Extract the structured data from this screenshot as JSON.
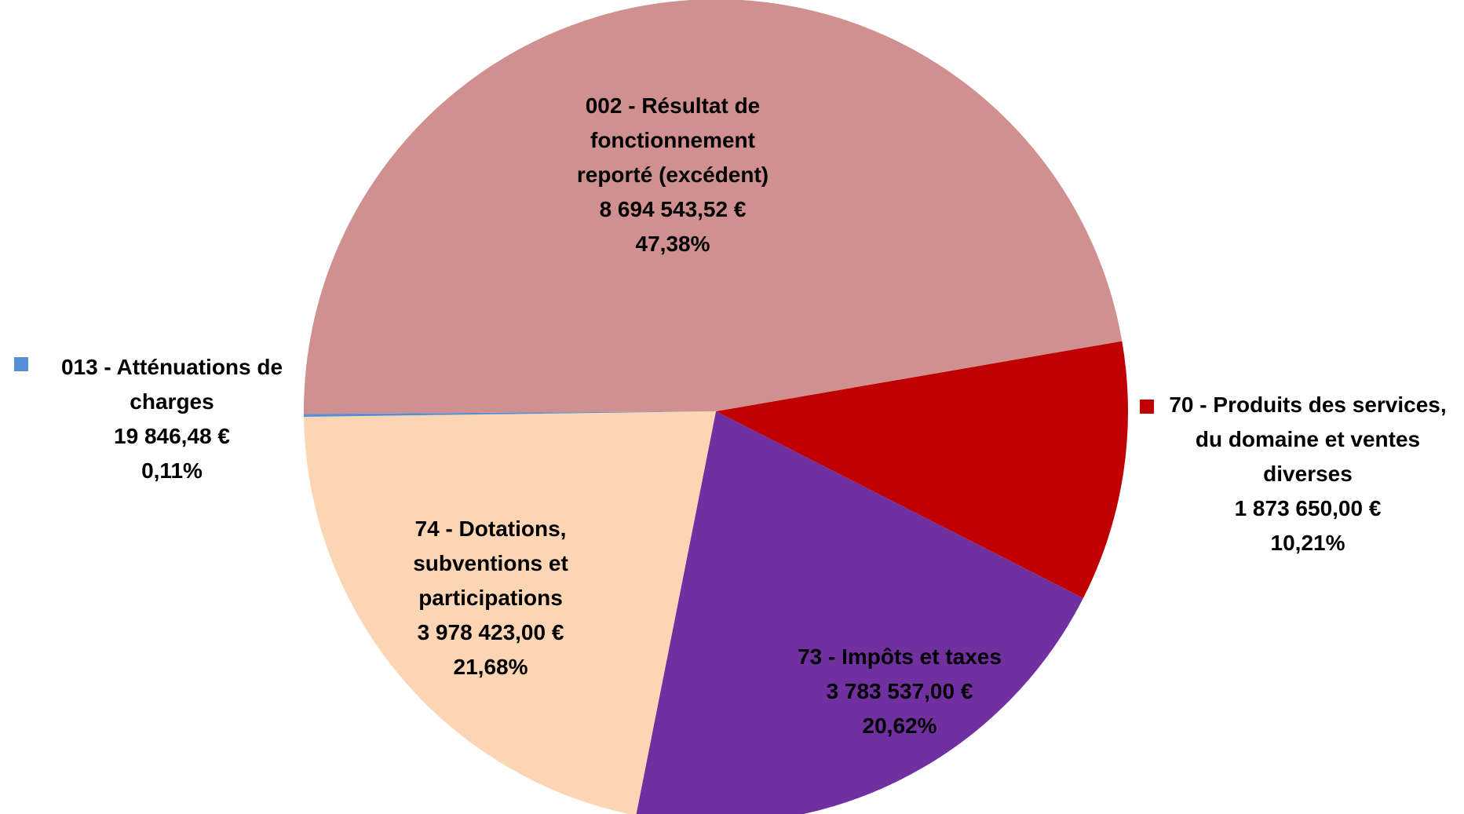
{
  "chart_data": {
    "type": "pie",
    "categories": [
      "70 - Produits des services, du domaine et ventes diverses",
      "73 - Impôts et taxes",
      "74 - Dotations, subventions et participations",
      "013 - Atténuations de charges",
      "002 - Résultat de fonctionnement reporté (excédent)"
    ],
    "values": [
      1873650.0,
      3783537.0,
      3978423.0,
      19846.48,
      8694543.52
    ],
    "value_labels": [
      "1 873 650,00 €",
      "3 783 537,00 €",
      "3 978 423,00 €",
      "19 846,48 €",
      "8 694 543,52 €"
    ],
    "percentages": [
      10.21,
      20.62,
      21.68,
      0.11,
      47.38
    ],
    "percentage_labels": [
      "10,21%",
      "20,62%",
      "21,68%",
      "0,11%",
      "47,38%"
    ],
    "colors": [
      "#c00000",
      "#7030a0",
      "#fcd5b5",
      "#558ed5",
      "#d09090"
    ]
  }
}
